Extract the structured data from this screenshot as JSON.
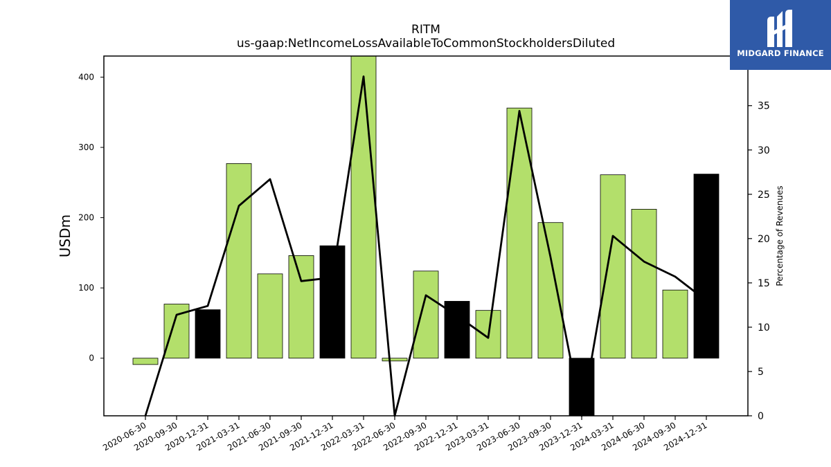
{
  "chart_data": {
    "type": "bar",
    "title": "RITM",
    "subtitle": "us-gaap:NetIncomeLossAvailableToCommonStockholdersDiluted",
    "ylabel": "USDm",
    "ylabel_right": "Percentage of Revenues",
    "ylim": [
      -82,
      430
    ],
    "ylim_right": [
      0,
      40.6
    ],
    "yticks": [
      0,
      100,
      200,
      300,
      400
    ],
    "yticks_right": [
      0,
      5,
      10,
      15,
      20,
      25,
      30,
      35
    ],
    "categories": [
      "2020-06-30",
      "2020-09-30",
      "2020-12-31",
      "2021-03-31",
      "2021-06-30",
      "2021-09-30",
      "2021-12-31",
      "2022-03-31",
      "2022-06-30",
      "2022-09-30",
      "2022-12-31",
      "2023-03-31",
      "2023-06-30",
      "2023-09-30",
      "2023-12-31",
      "2024-03-31",
      "2024-06-30",
      "2024-09-30",
      "2024-12-31"
    ],
    "series": [
      {
        "type": "bar",
        "values": [
          -9,
          77,
          69,
          277,
          120,
          146,
          160,
          432,
          -4,
          124,
          81,
          68,
          356,
          193,
          -82,
          261,
          212,
          97,
          262
        ],
        "highlight": [
          false,
          false,
          true,
          false,
          false,
          false,
          true,
          false,
          false,
          false,
          true,
          false,
          false,
          false,
          true,
          false,
          false,
          false,
          true
        ]
      },
      {
        "type": "line",
        "axis": "right",
        "values": [
          0,
          11.4,
          12.4,
          23.7,
          26.7,
          15.2,
          15.6,
          38.3,
          0,
          13.6,
          11.3,
          8.8,
          34.4,
          17.9,
          0,
          20.3,
          17.4,
          15.7,
          13.0
        ]
      }
    ],
    "colors": {
      "bar": "#b3df6b",
      "highlight": "#000000",
      "line": "#000000",
      "edge": "#000000"
    },
    "grid": false,
    "legend": "none"
  },
  "logo": {
    "text": "MIDGARD FINANCE",
    "background": "#2f5aa8"
  }
}
